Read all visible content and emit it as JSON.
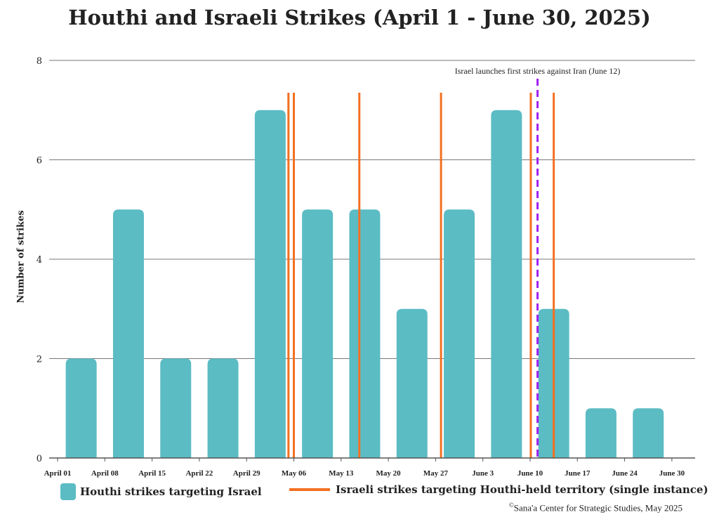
{
  "chart_data": {
    "type": "bar",
    "title": "Houthi and Israeli Strikes (April 1 - June 30, 2025)",
    "xlabel": "",
    "ylabel": "Number of strikes",
    "ylim": [
      0,
      8
    ],
    "yticks": [
      0,
      2,
      4,
      6,
      8
    ],
    "grid": true,
    "xtick_labels": [
      "April 01",
      "April 08",
      "April 15",
      "April 22",
      "April 29",
      "May 06",
      "May 13",
      "May 20",
      "May 27",
      "June 3",
      "June 10",
      "June 17",
      "June 24",
      "June 30"
    ],
    "series": [
      {
        "name": "Houthi strikes targeting Israel",
        "color": "#5bbcc4",
        "values": [
          2,
          5,
          2,
          2,
          7,
          5,
          5,
          3,
          5,
          7,
          3,
          1,
          1
        ]
      }
    ],
    "israeli_strikes": {
      "name": "Israeli strikes targeting Houthi-held territory (single instance)",
      "color": "#f37021",
      "days_since_april_1": [
        34.2,
        35.0,
        44.7,
        56.8,
        70.1,
        73.5
      ]
    },
    "annotation": {
      "text": "Israel launches first strikes against Iran (June 12)",
      "color": "#a020f0",
      "days_since_april_1": 71.1
    },
    "legend_position": "bottom",
    "credit": "Sana'a Center for Strategic Studies, May 2025",
    "credit_symbol": "©"
  }
}
